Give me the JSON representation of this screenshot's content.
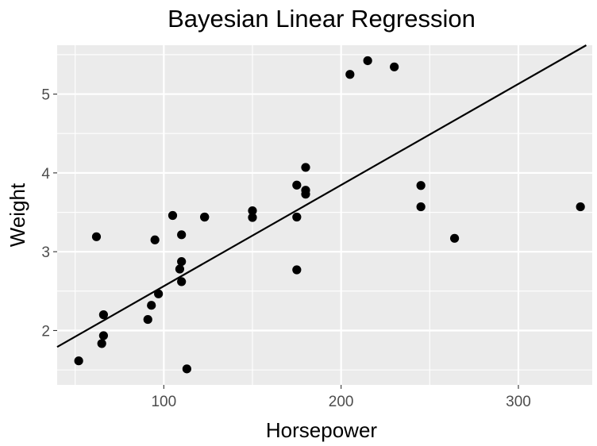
{
  "chart_data": {
    "type": "scatter",
    "title": "Bayesian Linear Regression",
    "xlabel": "Horsepower",
    "ylabel": "Weight",
    "xlim": [
      39.85,
      341.65
    ],
    "ylim": [
      1.31,
      5.62
    ],
    "x_ticks": [
      100,
      200,
      300
    ],
    "x_tick_labels": [
      "100",
      "200",
      "300"
    ],
    "y_ticks": [
      2,
      3,
      4,
      5
    ],
    "y_tick_labels": [
      "2",
      "3",
      "4",
      "5"
    ],
    "grid": true,
    "legend": "none",
    "colors": {
      "panel": "#ebebeb",
      "grid": "#ffffff",
      "points": "#000000",
      "line": "#000000",
      "ticks": "#333333",
      "tick_labels": "#4d4d4d"
    },
    "regression_line": {
      "intercept": 1.28,
      "slope": 0.01283
    },
    "points": [
      {
        "x": 110,
        "y": 2.62
      },
      {
        "x": 110,
        "y": 2.875
      },
      {
        "x": 93,
        "y": 2.32
      },
      {
        "x": 110,
        "y": 3.215
      },
      {
        "x": 175,
        "y": 3.44
      },
      {
        "x": 105,
        "y": 3.46
      },
      {
        "x": 245,
        "y": 3.57
      },
      {
        "x": 62,
        "y": 3.19
      },
      {
        "x": 95,
        "y": 3.15
      },
      {
        "x": 123,
        "y": 3.44
      },
      {
        "x": 123,
        "y": 3.44
      },
      {
        "x": 180,
        "y": 4.07
      },
      {
        "x": 180,
        "y": 3.73
      },
      {
        "x": 180,
        "y": 3.78
      },
      {
        "x": 205,
        "y": 5.25
      },
      {
        "x": 215,
        "y": 5.424
      },
      {
        "x": 230,
        "y": 5.345
      },
      {
        "x": 66,
        "y": 2.2
      },
      {
        "x": 52,
        "y": 1.615
      },
      {
        "x": 65,
        "y": 1.835
      },
      {
        "x": 97,
        "y": 2.465
      },
      {
        "x": 150,
        "y": 3.52
      },
      {
        "x": 150,
        "y": 3.435
      },
      {
        "x": 245,
        "y": 3.84
      },
      {
        "x": 175,
        "y": 3.845
      },
      {
        "x": 66,
        "y": 1.935
      },
      {
        "x": 91,
        "y": 2.14
      },
      {
        "x": 113,
        "y": 1.513
      },
      {
        "x": 264,
        "y": 3.17
      },
      {
        "x": 175,
        "y": 2.77
      },
      {
        "x": 335,
        "y": 3.57
      },
      {
        "x": 109,
        "y": 2.78
      }
    ]
  }
}
